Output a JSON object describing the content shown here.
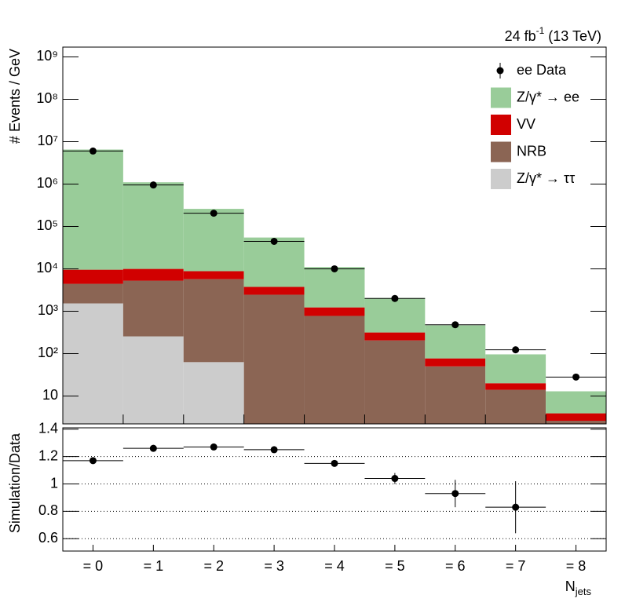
{
  "chart_data": [
    {
      "type": "stacked_bar",
      "log_y": true,
      "y_label": "# Events / GeV",
      "lumi": {
        "text": "24 fb",
        "sup": "-1",
        "rest": " (13 TeV)"
      },
      "ylim": [
        2.2,
        1700000000
      ],
      "yticks": [
        {
          "value": 10,
          "label": "10"
        },
        {
          "value": 100,
          "label": "10²"
        },
        {
          "value": 1000,
          "label": "10³"
        },
        {
          "value": 10000,
          "label": "10⁴"
        },
        {
          "value": 100000,
          "label": "10⁵"
        },
        {
          "value": 1000000,
          "label": "10⁶"
        },
        {
          "value": 10000000,
          "label": "10⁷"
        },
        {
          "value": 100000000,
          "label": "10⁸"
        },
        {
          "value": 1000000000,
          "label": "10⁹"
        }
      ],
      "legend": "top-right",
      "data": {
        "name": "ee Data",
        "color": "#000000",
        "values": [
          6000000,
          950000,
          205000,
          44500,
          10000,
          2000,
          480,
          123,
          28
        ]
      },
      "series": [
        {
          "name": "Z/γ* → ττ",
          "color": "#cccccc",
          "values": [
            1530,
            255,
            63,
            null,
            null,
            null,
            null,
            null,
            null
          ]
        },
        {
          "name": "NRB",
          "color": "#8b6554",
          "values": [
            2900,
            5000,
            5640,
            2450,
            775,
            205,
            50,
            14,
            2.6
          ]
        },
        {
          "name": "VV",
          "color": "#d10000",
          "values": [
            5100,
            4700,
            3100,
            1300,
            455,
            110,
            27,
            6,
            1.3
          ]
        },
        {
          "name": "Z/γ* → ee",
          "color": "#99cc99",
          "values": [
            6500000,
            1090000,
            251000,
            51000,
            9800,
            1735,
            388,
            76,
            9
          ]
        }
      ]
    },
    {
      "type": "errorbar",
      "y_label": "Simulation/Data",
      "x_label": "N",
      "x_label_sub": "jets",
      "categories": [
        "= 0",
        "= 1",
        "= 2",
        "= 3",
        "= 4",
        "= 5",
        "= 6",
        "= 7",
        "= 8"
      ],
      "values": [
        1.17,
        1.26,
        1.27,
        1.25,
        1.15,
        1.04,
        0.93,
        0.83,
        null
      ],
      "errors": [
        0.005,
        0.005,
        0.005,
        0.005,
        0.01,
        0.04,
        0.1,
        0.19,
        null
      ],
      "color": "#000000",
      "ylim": [
        0.51,
        1.41
      ],
      "yticks": [
        {
          "value": 0.6,
          "label": "0.6"
        },
        {
          "value": 0.8,
          "label": "0.8"
        },
        1,
        {
          "value": 1.2,
          "label": "1.2"
        },
        {
          "value": 1.4,
          "label": "1.4"
        }
      ],
      "grid_values": [
        0.6,
        0.8,
        1,
        1.2
      ],
      "grid": true
    }
  ]
}
